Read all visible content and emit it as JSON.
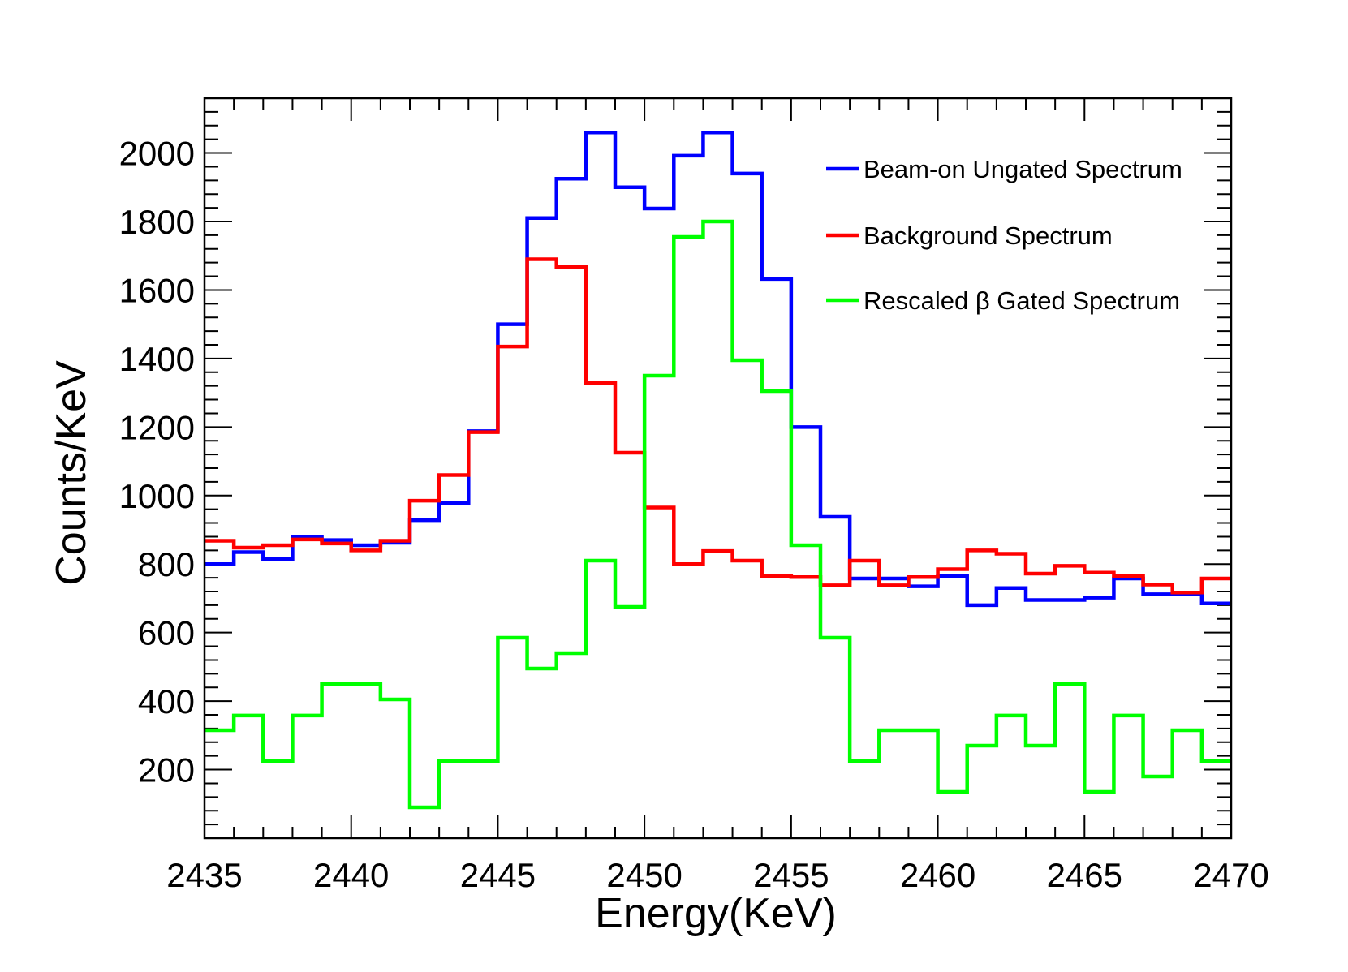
{
  "chart_data": {
    "type": "line",
    "style": "step-histogram",
    "title": "",
    "xlabel": "Energy(KeV)",
    "ylabel": "Counts/KeV",
    "xlim": [
      2435,
      2470
    ],
    "ylim": [
      0,
      2160
    ],
    "x_ticks": [
      2435,
      2440,
      2445,
      2450,
      2455,
      2460,
      2465,
      2470
    ],
    "y_ticks": [
      200,
      400,
      600,
      800,
      1000,
      1200,
      1400,
      1600,
      1800,
      2000
    ],
    "bin_edges": [
      2435,
      2436,
      2437,
      2438,
      2439,
      2440,
      2441,
      2442,
      2443,
      2444,
      2445,
      2446,
      2447,
      2448,
      2449,
      2450,
      2451,
      2452,
      2453,
      2454,
      2455,
      2456,
      2457,
      2458,
      2459,
      2460,
      2461,
      2462,
      2463,
      2464,
      2465,
      2466,
      2467,
      2468,
      2469,
      2470
    ],
    "legend_position": "top-right",
    "series": [
      {
        "name": "Beam-on Ungated Spectrum",
        "color": "#0000ff",
        "values": [
          800,
          835,
          815,
          878,
          870,
          855,
          862,
          928,
          978,
          1188,
          1500,
          1810,
          1925,
          2060,
          1900,
          1838,
          1992,
          2060,
          1940,
          1632,
          1200,
          938,
          758,
          758,
          735,
          765,
          680,
          730,
          695,
          695,
          702,
          758,
          712,
          712,
          685
        ]
      },
      {
        "name": "Background Spectrum",
        "color": "#ff0000",
        "values": [
          868,
          848,
          855,
          872,
          860,
          840,
          868,
          985,
          1060,
          1185,
          1435,
          1690,
          1668,
          1328,
          1125,
          965,
          800,
          838,
          810,
          765,
          762,
          738,
          810,
          738,
          762,
          785,
          840,
          830,
          772,
          795,
          775,
          765,
          740,
          717,
          758
        ]
      },
      {
        "name": "Rescaled β Gated Spectrum",
        "color": "#00ff00",
        "values": [
          315,
          358,
          225,
          358,
          450,
          450,
          405,
          90,
          225,
          225,
          585,
          495,
          540,
          810,
          675,
          1350,
          1755,
          1800,
          1395,
          1305,
          855,
          585,
          225,
          315,
          315,
          135,
          270,
          358,
          270,
          450,
          135,
          358,
          180,
          315,
          225
        ]
      }
    ]
  }
}
